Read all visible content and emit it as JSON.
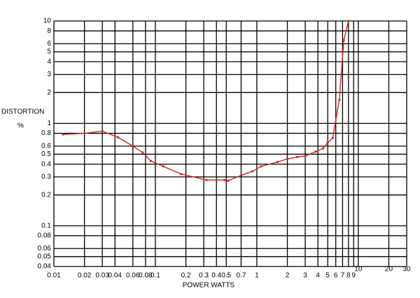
{
  "chart_data": {
    "type": "line",
    "ylabel": "DISTORTION",
    "yunit": "%",
    "xlabel": "POWER WATTS",
    "xscale": "log",
    "yscale": "log",
    "grid": true,
    "xlim": [
      0.01,
      30
    ],
    "ylim": [
      0.04,
      10
    ],
    "xticks": [
      0.01,
      0.02,
      0.03,
      0.04,
      0.06,
      0.08,
      0.1,
      0.2,
      0.3,
      0.4,
      0.5,
      0.7,
      1,
      2,
      3,
      4,
      5,
      6,
      7,
      8,
      9,
      10,
      20,
      30
    ],
    "yticks": [
      0.04,
      0.05,
      0.06,
      0.08,
      0.1,
      0.2,
      0.3,
      0.4,
      0.5,
      0.6,
      0.8,
      1,
      2,
      3,
      4,
      5,
      6,
      8,
      10
    ],
    "series": [
      {
        "color": "#c62828",
        "x": [
          0.0123,
          0.02,
          0.03,
          0.043,
          0.06,
          0.075,
          0.09,
          0.12,
          0.18,
          0.32,
          0.4,
          0.48,
          0.52,
          0.7,
          0.9,
          1.1,
          1.6,
          2,
          2.5,
          3,
          3.8,
          4.5,
          5,
          5.6,
          6.5,
          7.2,
          8
        ],
        "values": [
          0.78,
          0.8,
          0.84,
          0.73,
          0.6,
          0.52,
          0.43,
          0.38,
          0.32,
          0.28,
          0.28,
          0.28,
          0.275,
          0.31,
          0.34,
          0.38,
          0.42,
          0.45,
          0.47,
          0.48,
          0.53,
          0.57,
          0.65,
          0.72,
          1.7,
          6.5,
          10
        ]
      }
    ]
  }
}
